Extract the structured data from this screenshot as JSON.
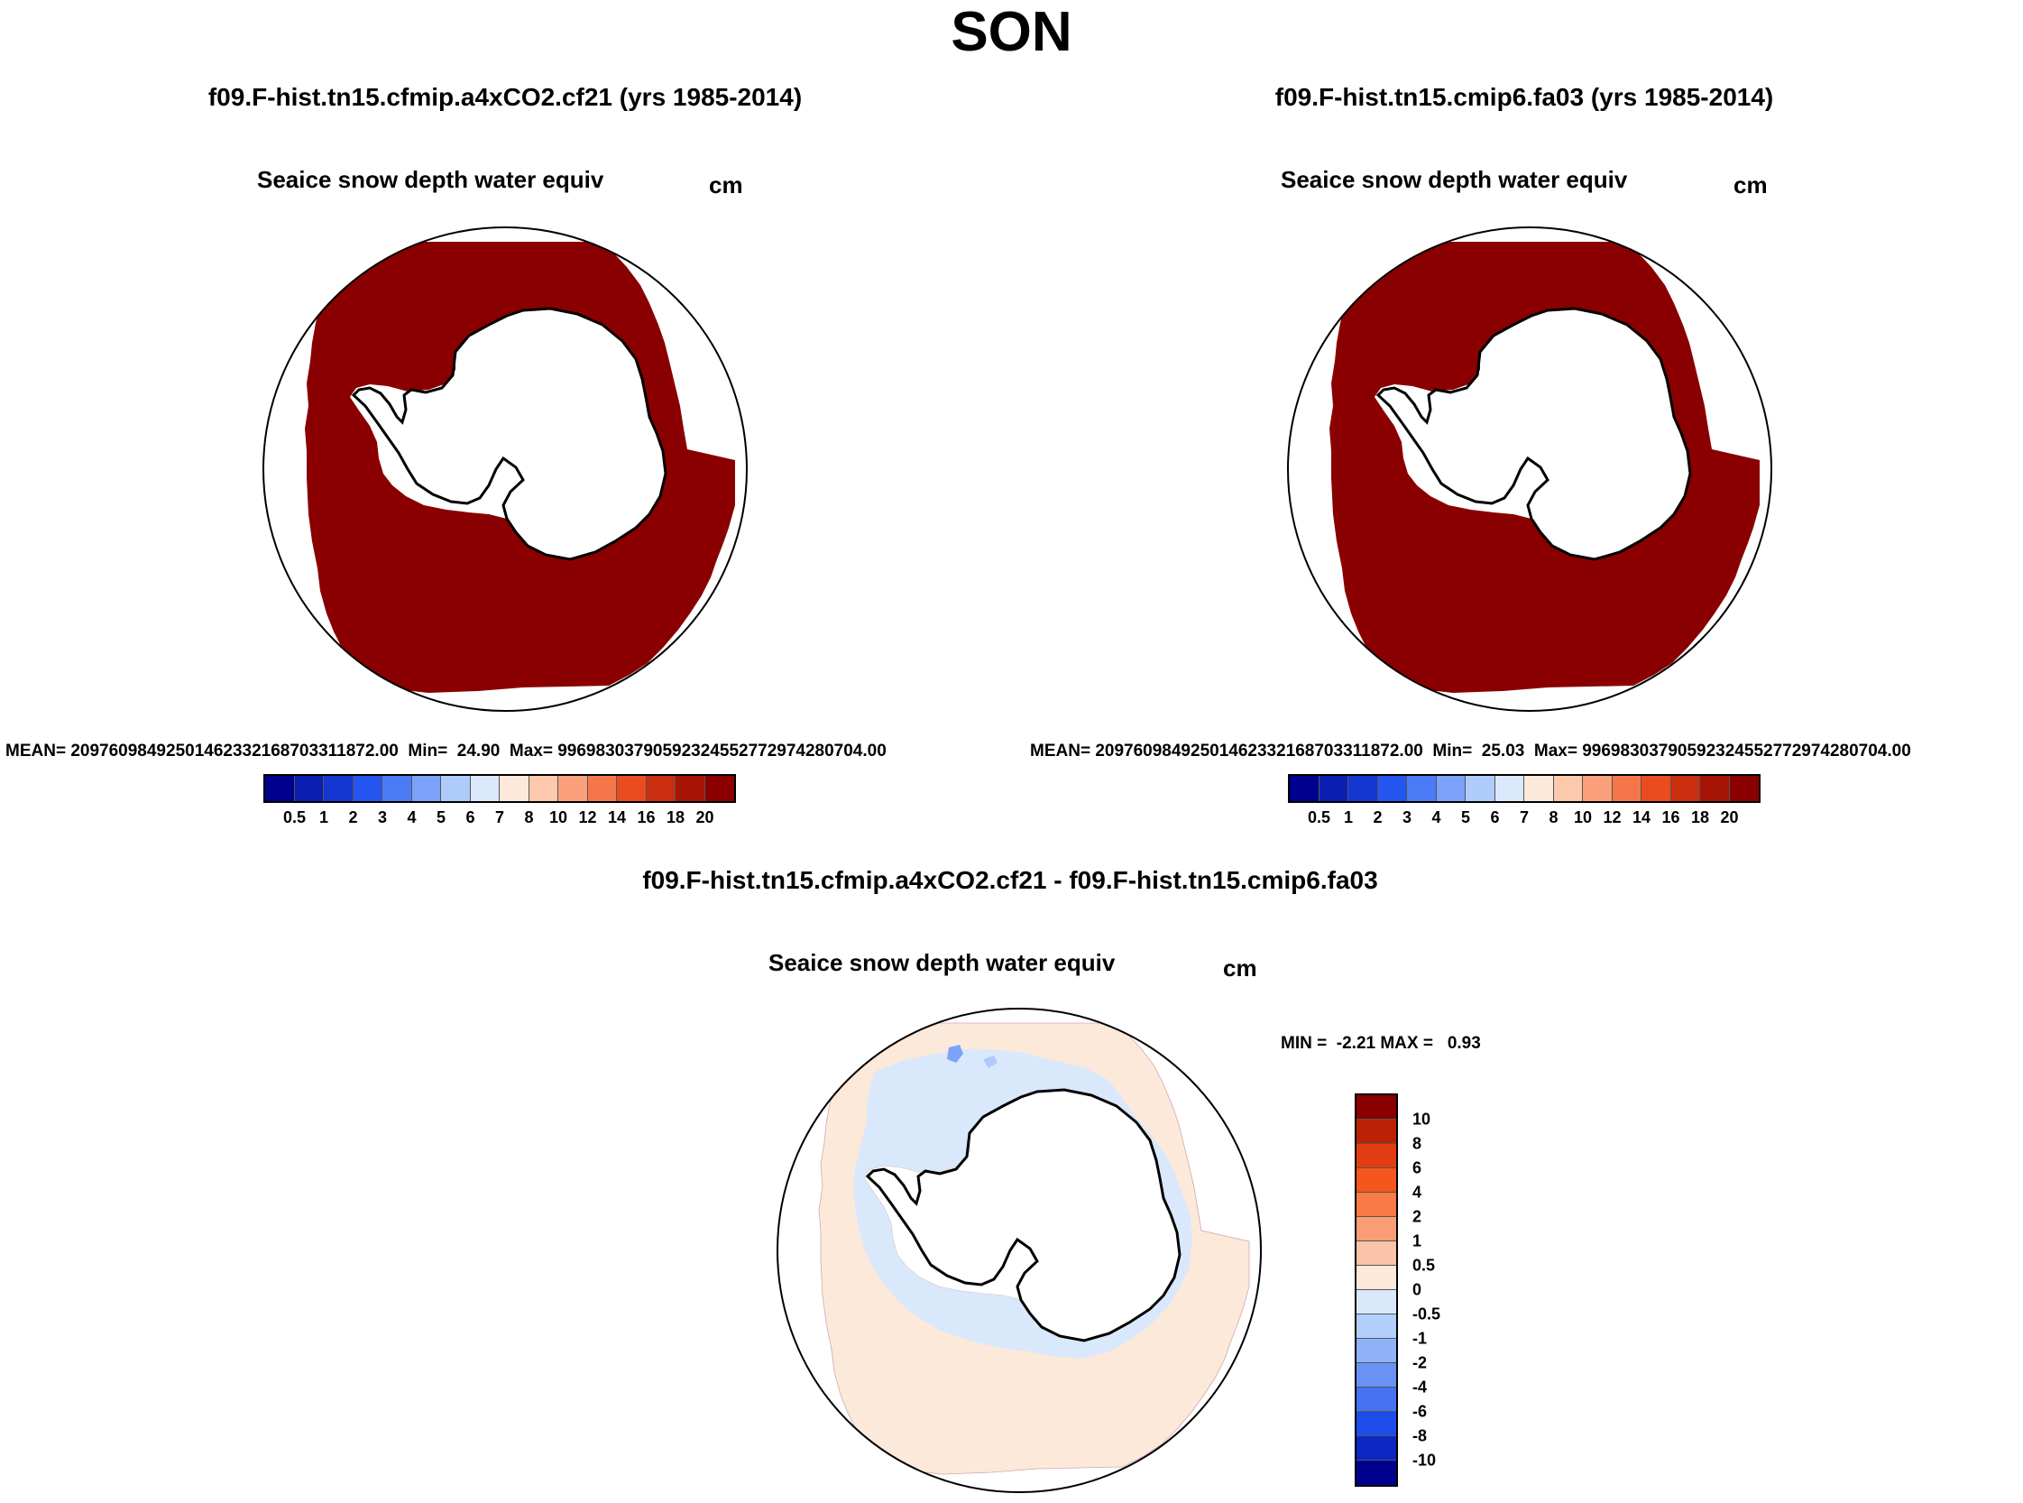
{
  "title": "SON",
  "panel_left": {
    "run_title": "f09.F-hist.tn15.cfmip.a4xCO2.cf21 (yrs 1985-2014)",
    "var_title": "Seaice snow depth water equiv",
    "units": "cm",
    "mean_label": "MEAN=",
    "mean_value": "20976098492501462332168703311872.00",
    "min_label": "Min=",
    "min_value": "24.90",
    "max_label": "Max=",
    "max_value": "99698303790592324552772974280704.00"
  },
  "panel_right": {
    "run_title": "f09.F-hist.tn15.cmip6.fa03 (yrs 1985-2014)",
    "var_title": "Seaice snow depth water equiv",
    "units": "cm",
    "mean_label": "MEAN=",
    "mean_value": "20976098492501462332168703311872.00",
    "min_label": "Min=",
    "min_value": "25.03",
    "max_label": "Max=",
    "max_value": "99698303790592324552772974280704.00"
  },
  "panel_diff": {
    "run_title": "f09.F-hist.tn15.cfmip.a4xCO2.cf21 - f09.F-hist.tn15.cmip6.fa03",
    "var_title": "Seaice snow depth water equiv",
    "units": "cm",
    "min_label": "MIN =",
    "min_value": "-2.21",
    "max_label": "MAX =",
    "max_value": "0.93"
  },
  "colorbar_main": {
    "colors": [
      "#00008f",
      "#0a1fb0",
      "#1437d0",
      "#2455ee",
      "#4b7cf5",
      "#7ca2fa",
      "#aecbfc",
      "#dbe9fd",
      "#fde9da",
      "#fcc9ad",
      "#faa07c",
      "#f57749",
      "#e94d1f",
      "#c92e0e",
      "#a51405",
      "#8a0000"
    ],
    "labels": [
      "0.5",
      "1",
      "2",
      "3",
      "4",
      "5",
      "6",
      "7",
      "8",
      "10",
      "12",
      "14",
      "16",
      "18",
      "20"
    ]
  },
  "colorbar_diff": {
    "colors": [
      "#8a0000",
      "#bb2205",
      "#e23d12",
      "#f5561e",
      "#f77a47",
      "#f99d76",
      "#fbc3a7",
      "#fde8da",
      "#dae8fc",
      "#b3cffc",
      "#8fb2fa",
      "#6a92f6",
      "#4571f2",
      "#1e4ce8",
      "#0d27c2",
      "#00008f"
    ],
    "labels": [
      "10",
      "8",
      "6",
      "4",
      "2",
      "1",
      "0.5",
      "0",
      "-0.5",
      "-1",
      "-2",
      "-4",
      "-6",
      "-8",
      "-10"
    ]
  },
  "map_colors": {
    "snow_dark_red": "#8a0000",
    "diff_positive": "#fde9da",
    "diff_negative": "#dae8fc",
    "diff_strong_negative": "#7ca2fa"
  }
}
